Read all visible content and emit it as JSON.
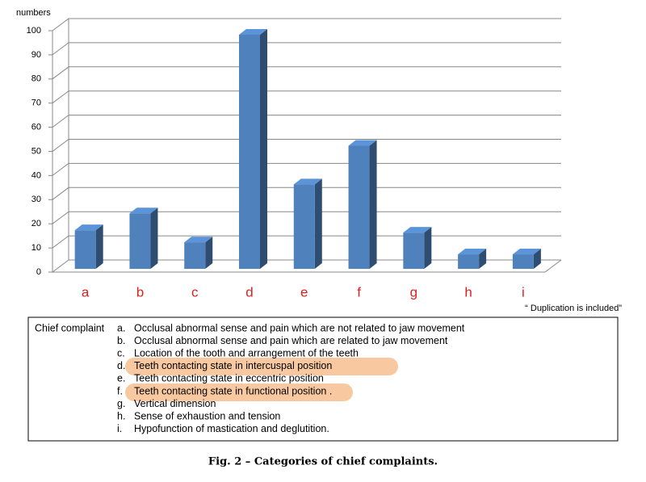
{
  "chart_data": {
    "type": "bar3d",
    "y_label": "numbers",
    "categories": [
      "a",
      "b",
      "c",
      "d",
      "e",
      "f",
      "g",
      "h",
      "i"
    ],
    "values": [
      16,
      23,
      11,
      97,
      35,
      51,
      15,
      6,
      6
    ],
    "color": "#4f81bd",
    "category_color": "#e02020",
    "ylim": [
      0,
      100
    ],
    "yticks": [
      0,
      10,
      20,
      30,
      40,
      50,
      60,
      70,
      80,
      90,
      100
    ],
    "grid": true,
    "annotation": "“ Duplication is included”"
  },
  "legend": {
    "title": "Chief complaint",
    "items": [
      {
        "letter": "a.",
        "text": "Occlusal abnormal sense and pain which are not related to jaw movement"
      },
      {
        "letter": "b.",
        "text": "Occlusal abnormal sense and pain which are related to jaw movement"
      },
      {
        "letter": "c.",
        "text": "Location of the tooth and arrangement of the teeth"
      },
      {
        "letter": "d.",
        "text": "Teeth contacting state in intercuspal position"
      },
      {
        "letter": "e.",
        "text": "Teeth contacting state in eccentric position"
      },
      {
        "letter": "f.",
        "text": "Teeth contacting state in functional position ."
      },
      {
        "letter": "g.",
        "text": "Vertical dimension"
      },
      {
        "letter": "h.",
        "text": "Sense of exhaustion and tension"
      },
      {
        "letter": "i.",
        "text": "Hypofunction of mastication and deglutition."
      }
    ]
  },
  "caption": "Fig. 2 – Categories of chief complaints."
}
